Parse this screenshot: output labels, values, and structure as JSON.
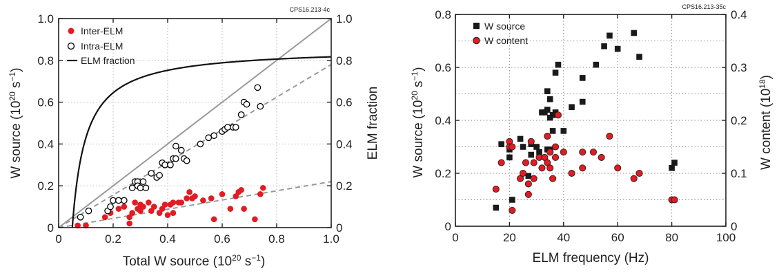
{
  "chart_data": [
    {
      "type": "scatter",
      "id_label": "CPS16.213-4c",
      "xlabel_main": "Total W source (10",
      "xlabel_exp": "20",
      "xlabel_tail": " s",
      "xlabel_exp2": "−1",
      "xlabel_close": ")",
      "ylabel_main": "W source (10",
      "ylabel_exp": "20",
      "ylabel_tail": " s",
      "ylabel_exp2": "−1",
      "ylabel_close": ")",
      "y2label": "ELM fraction",
      "xlim": [
        0,
        1.0
      ],
      "ylim": [
        0,
        1.0
      ],
      "y2lim": [
        0,
        1.0
      ],
      "xticks": [
        "0",
        "0.2",
        "0.4",
        "0.6",
        "0.8",
        "1.0"
      ],
      "yticks": [
        "0",
        "0.2",
        "0.4",
        "0.6",
        "0.8",
        "1.0"
      ],
      "y2ticks": [
        "0",
        "0.2",
        "0.4",
        "0.6",
        "0.8",
        "1.0"
      ],
      "legend_position": "top-left",
      "grid": true,
      "colors": {
        "inter": "#e31b23",
        "intra": "#000000",
        "curve": "#111111",
        "ref": "#9a9a9a"
      },
      "series": [
        {
          "name": "Inter-ELM",
          "marker": "filled-circle",
          "points": [
            [
              0.07,
              0.01
            ],
            [
              0.1,
              0.01
            ],
            [
              0.17,
              0.05
            ],
            [
              0.19,
              0.07
            ],
            [
              0.22,
              0.09
            ],
            [
              0.24,
              0.1
            ],
            [
              0.26,
              0.02
            ],
            [
              0.26,
              0.05
            ],
            [
              0.27,
              0.07
            ],
            [
              0.28,
              0.12
            ],
            [
              0.29,
              0.09
            ],
            [
              0.3,
              0.08
            ],
            [
              0.3,
              0.11
            ],
            [
              0.31,
              0.1
            ],
            [
              0.33,
              0.12
            ],
            [
              0.34,
              0.08
            ],
            [
              0.35,
              0.1
            ],
            [
              0.37,
              0.07
            ],
            [
              0.38,
              0.09
            ],
            [
              0.39,
              0.11
            ],
            [
              0.4,
              0.06
            ],
            [
              0.41,
              0.11
            ],
            [
              0.42,
              0.12
            ],
            [
              0.42,
              0.07
            ],
            [
              0.44,
              0.12
            ],
            [
              0.45,
              0.12
            ],
            [
              0.47,
              0.14
            ],
            [
              0.48,
              0.17
            ],
            [
              0.49,
              0.14
            ],
            [
              0.5,
              0.15
            ],
            [
              0.53,
              0.13
            ],
            [
              0.56,
              0.14
            ],
            [
              0.57,
              0.04
            ],
            [
              0.6,
              0.16
            ],
            [
              0.63,
              0.09
            ],
            [
              0.65,
              0.15
            ],
            [
              0.66,
              0.17
            ],
            [
              0.67,
              0.18
            ],
            [
              0.68,
              0.09
            ],
            [
              0.72,
              0.04
            ],
            [
              0.74,
              0.16
            ],
            [
              0.75,
              0.19
            ]
          ]
        },
        {
          "name": "Intra-ELM",
          "marker": "open-circle",
          "points": [
            [
              0.08,
              0.05
            ],
            [
              0.11,
              0.08
            ],
            [
              0.18,
              0.08
            ],
            [
              0.19,
              0.1
            ],
            [
              0.2,
              0.13
            ],
            [
              0.22,
              0.13
            ],
            [
              0.24,
              0.13
            ],
            [
              0.27,
              0.19
            ],
            [
              0.28,
              0.22
            ],
            [
              0.29,
              0.22
            ],
            [
              0.29,
              0.2
            ],
            [
              0.3,
              0.19
            ],
            [
              0.31,
              0.22
            ],
            [
              0.32,
              0.19
            ],
            [
              0.34,
              0.26
            ],
            [
              0.36,
              0.24
            ],
            [
              0.37,
              0.25
            ],
            [
              0.38,
              0.31
            ],
            [
              0.39,
              0.3
            ],
            [
              0.41,
              0.3
            ],
            [
              0.42,
              0.33
            ],
            [
              0.43,
              0.33
            ],
            [
              0.43,
              0.39
            ],
            [
              0.45,
              0.37
            ],
            [
              0.46,
              0.33
            ],
            [
              0.47,
              0.32
            ],
            [
              0.52,
              0.4
            ],
            [
              0.55,
              0.43
            ],
            [
              0.57,
              0.44
            ],
            [
              0.6,
              0.46
            ],
            [
              0.61,
              0.47
            ],
            [
              0.62,
              0.48
            ],
            [
              0.64,
              0.48
            ],
            [
              0.65,
              0.48
            ],
            [
              0.67,
              0.54
            ],
            [
              0.68,
              0.6
            ],
            [
              0.69,
              0.59
            ],
            [
              0.73,
              0.67
            ],
            [
              0.74,
              0.58
            ]
          ]
        },
        {
          "name": "ELM fraction",
          "type": "line",
          "axis": "right",
          "formula": "0.86*(1-0.05/x)"
        }
      ],
      "reference_lines": [
        {
          "style": "solid-grey",
          "slope": 1.0
        },
        {
          "style": "dashed-grey",
          "slope": 0.78
        },
        {
          "style": "dashed-grey",
          "slope": 0.22
        }
      ]
    },
    {
      "type": "scatter",
      "id_label": "CPS16.213-35c",
      "xlabel": "ELM frequency (Hz)",
      "ylabel_main": "W source (10",
      "ylabel_exp": "20",
      "ylabel_tail": " s",
      "ylabel_exp2": "−1",
      "ylabel_close": ")",
      "y2label_main": "W content (10",
      "y2label_exp": "18",
      "y2label_close": ")",
      "xlim": [
        0,
        100
      ],
      "ylim": [
        0,
        0.8
      ],
      "y2lim": [
        0,
        0.4
      ],
      "xticks": [
        "0",
        "20",
        "40",
        "60",
        "80",
        "100"
      ],
      "yticks": [
        "0",
        "0.2",
        "0.4",
        "0.6",
        "0.8"
      ],
      "y2ticks": [
        "0",
        "0.1",
        "0.2",
        "0.3",
        "0.4"
      ],
      "legend_position": "top-left",
      "grid": true,
      "colors": {
        "source": "#1a1a1a",
        "content": "#e31b23"
      },
      "series": [
        {
          "name": "W source",
          "marker": "filled-square",
          "axis": "left",
          "points": [
            [
              15,
              0.07
            ],
            [
              17,
              0.31
            ],
            [
              20,
              0.26
            ],
            [
              20,
              0.29
            ],
            [
              21,
              0.1
            ],
            [
              24,
              0.33
            ],
            [
              25,
              0.3
            ],
            [
              27,
              0.19
            ],
            [
              28,
              0.31
            ],
            [
              28,
              0.27
            ],
            [
              30,
              0.3
            ],
            [
              31,
              0.28
            ],
            [
              32,
              0.43
            ],
            [
              33,
              0.43
            ],
            [
              34,
              0.51
            ],
            [
              34,
              0.29
            ],
            [
              34,
              0.44
            ],
            [
              35,
              0.41
            ],
            [
              35,
              0.29
            ],
            [
              35,
              0.48
            ],
            [
              36,
              0.36
            ],
            [
              36,
              0.42
            ],
            [
              37,
              0.43
            ],
            [
              37,
              0.58
            ],
            [
              38,
              0.61
            ],
            [
              40,
              0.36
            ],
            [
              43,
              0.45
            ],
            [
              47,
              0.47
            ],
            [
              47,
              0.56
            ],
            [
              52,
              0.61
            ],
            [
              55,
              0.68
            ],
            [
              57,
              0.72
            ],
            [
              60,
              0.67
            ],
            [
              66,
              0.73
            ],
            [
              68,
              0.64
            ],
            [
              80,
              0.22
            ],
            [
              81,
              0.24
            ]
          ]
        },
        {
          "name": "W content",
          "marker": "filled-circle",
          "axis": "right",
          "points": [
            [
              15,
              0.07
            ],
            [
              17,
              0.12
            ],
            [
              20,
              0.16
            ],
            [
              20,
              0.15
            ],
            [
              21,
              0.03
            ],
            [
              21,
              0.15
            ],
            [
              24,
              0.09
            ],
            [
              25,
              0.1
            ],
            [
              26,
              0.12
            ],
            [
              27,
              0.06
            ],
            [
              27,
              0.08
            ],
            [
              28,
              0.16
            ],
            [
              29,
              0.12
            ],
            [
              29,
              0.09
            ],
            [
              31,
              0.13
            ],
            [
              32,
              0.11
            ],
            [
              33,
              0.13
            ],
            [
              34,
              0.17
            ],
            [
              34,
              0.12
            ],
            [
              35,
              0.14
            ],
            [
              35,
              0.11
            ],
            [
              35,
              0.14
            ],
            [
              36,
              0.09
            ],
            [
              37,
              0.13
            ],
            [
              37,
              0.15
            ],
            [
              38,
              0.21
            ],
            [
              40,
              0.14
            ],
            [
              43,
              0.1
            ],
            [
              47,
              0.14
            ],
            [
              47,
              0.11
            ],
            [
              51,
              0.14
            ],
            [
              54,
              0.13
            ],
            [
              57,
              0.17
            ],
            [
              60,
              0.11
            ],
            [
              66,
              0.09
            ],
            [
              68,
              0.1
            ],
            [
              80,
              0.05
            ],
            [
              81,
              0.05
            ]
          ]
        }
      ]
    }
  ]
}
